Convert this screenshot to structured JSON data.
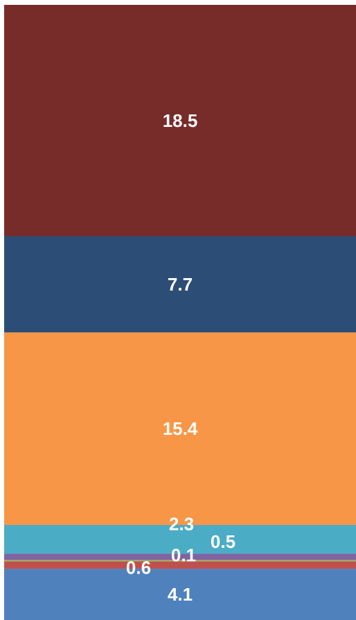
{
  "chart_data": {
    "type": "bar",
    "stacked": true,
    "orientation": "vertical",
    "categories": [
      ""
    ],
    "series": [
      {
        "values": [
          4.1
        ],
        "color": "#4F81BD"
      },
      {
        "values": [
          0.6
        ],
        "color": "#C0504D"
      },
      {
        "values": [
          0.1
        ],
        "color": "#9BBB59"
      },
      {
        "values": [
          0.5
        ],
        "color": "#8064A2"
      },
      {
        "values": [
          2.3
        ],
        "color": "#4BACC6"
      },
      {
        "values": [
          15.4
        ],
        "color": "#F79646"
      },
      {
        "values": [
          7.7
        ],
        "color": "#2C4D75"
      },
      {
        "values": [
          18.5
        ],
        "color": "#772C2A"
      }
    ],
    "data_labels": [
      "4.1",
      "0.6",
      "0.1",
      "0.5",
      "2.3",
      "15.4",
      "7.7",
      "18.5"
    ],
    "grid": false,
    "legend": "none"
  }
}
